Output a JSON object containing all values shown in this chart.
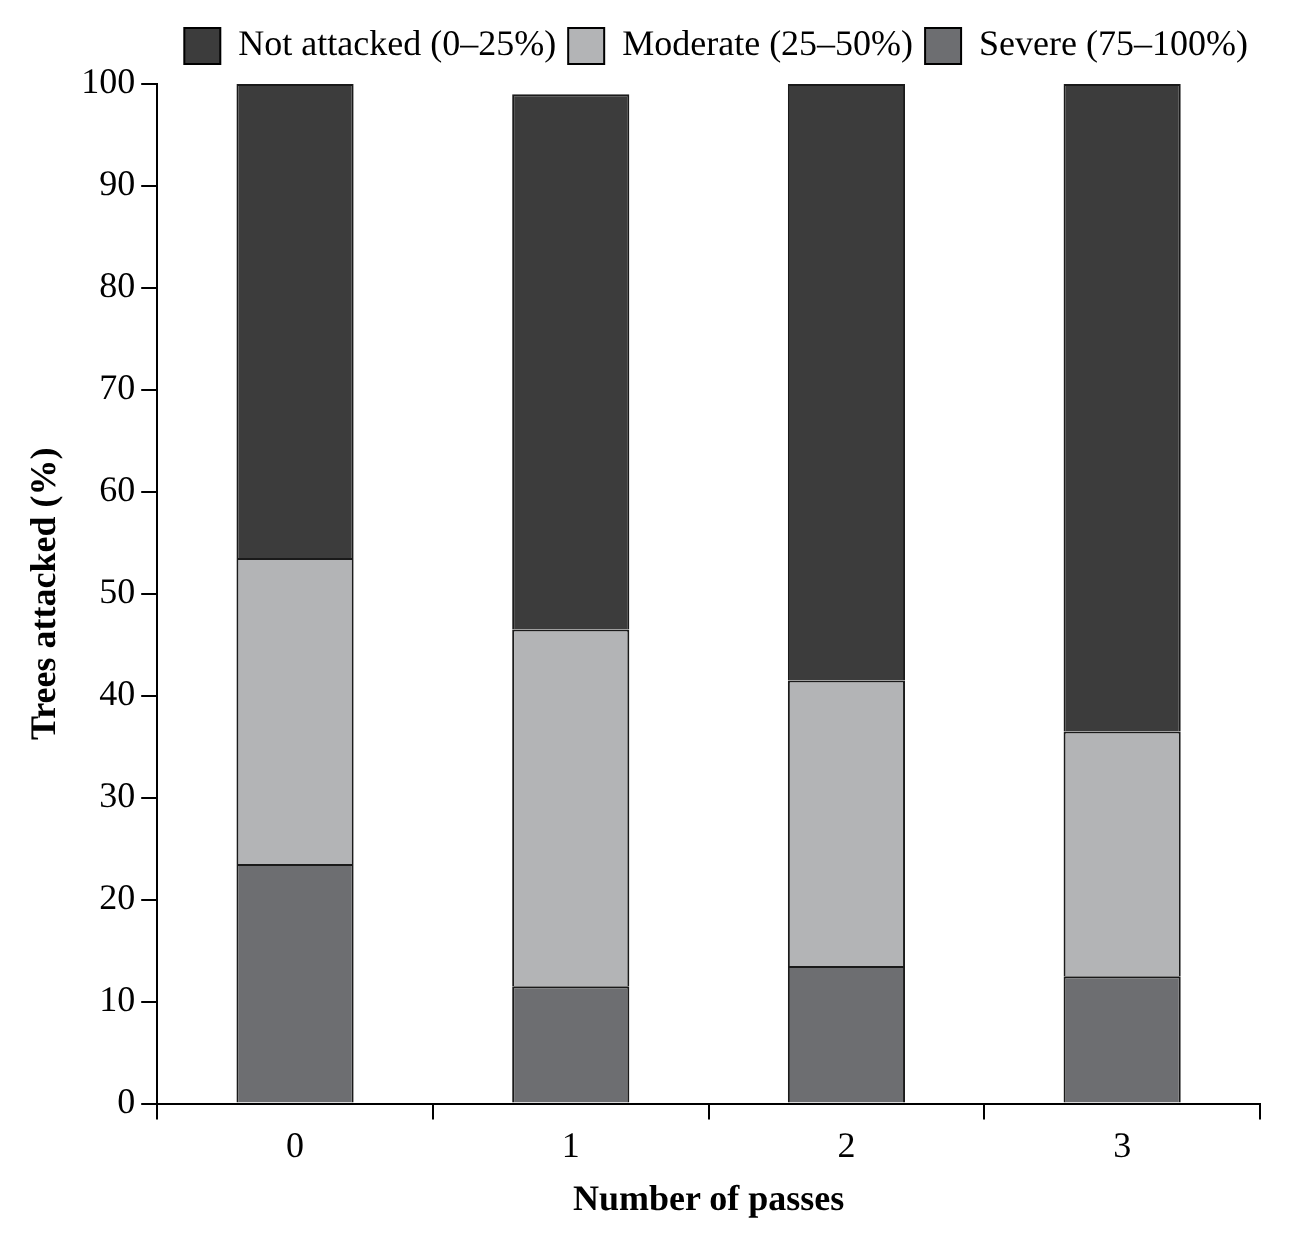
{
  "chart_data": {
    "type": "bar",
    "stacked": true,
    "xlabel": "Number of passes",
    "ylabel": "Trees attacked (%)",
    "categories": [
      "0",
      "1",
      "2",
      "3"
    ],
    "series": [
      {
        "name": "Severe (75–100%)",
        "color": "#6d6e71",
        "values": [
          23.5,
          11.5,
          13.5,
          12.5
        ]
      },
      {
        "name": "Moderate (25–50%)",
        "color": "#b3b4b6",
        "values": [
          30,
          35,
          28,
          24
        ]
      },
      {
        "name": "Not attacked (0–25%)",
        "color": "#3c3c3c",
        "values": [
          46.5,
          52.5,
          58.5,
          63.5
        ]
      }
    ],
    "ylim": [
      0,
      100
    ],
    "yticks": [
      0,
      10,
      20,
      30,
      40,
      50,
      60,
      70,
      80,
      90,
      100
    ],
    "grid": false,
    "legend": "top right"
  }
}
